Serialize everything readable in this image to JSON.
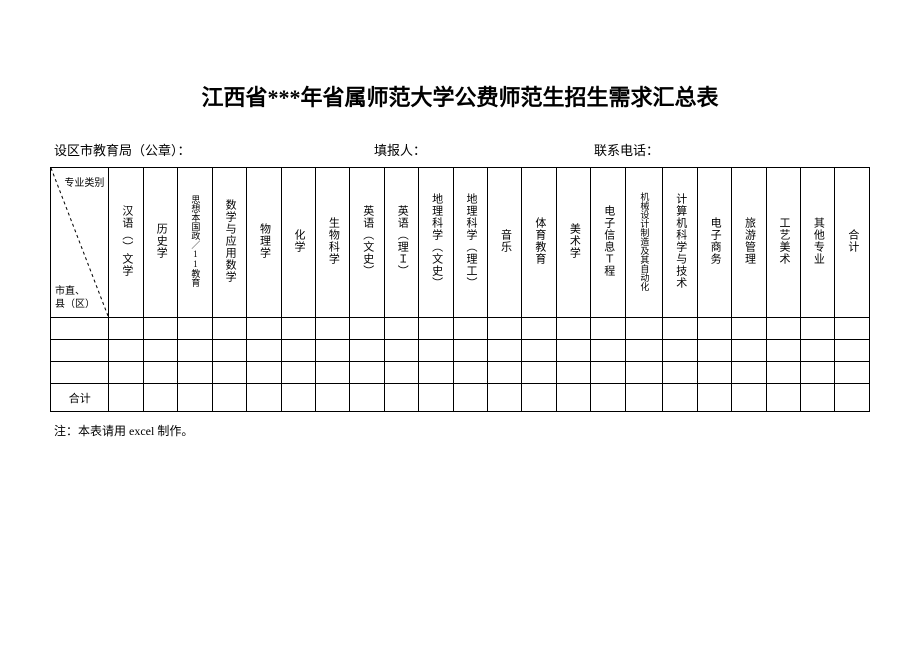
{
  "title": "江西省***年省属师范大学公费师范生招生需求汇总表",
  "meta": {
    "left": "设区市教育局（公章）：",
    "mid": "填报人：",
    "right": "联系电话："
  },
  "diagonal": {
    "top": "专业类别",
    "bottom": "市直、\n县（区）"
  },
  "columns": [
    "汉语（）文学",
    "历史学",
    "思想本国政／11教育",
    "数学与应用数学",
    "物理学",
    "化学",
    "生物科学",
    "英语（文史）",
    "英语（理Ｉ）",
    "地理科学（文史）",
    "地理科学（理工）",
    "音乐",
    "体育教育",
    "美术学",
    "电子信息Ｔ程",
    "机械设计制造及其自动化",
    "计算机科学与技术",
    "电子商务",
    "旅游管理",
    "工艺美术",
    "其他专业",
    "合计"
  ],
  "columns_small_font": [
    2,
    15
  ],
  "total_label": "合计",
  "footnote": "注：本表请用 excel 制作。",
  "colors": {
    "border": "#000000",
    "background": "#ffffff",
    "text": "#000000"
  }
}
